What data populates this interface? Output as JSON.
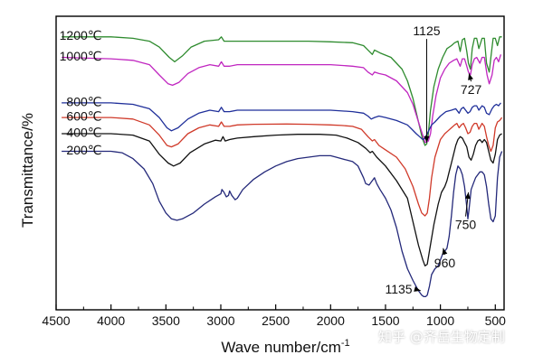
{
  "chart_data": {
    "type": "line",
    "title": "",
    "xlabel": "Wave number/cm",
    "xlabel_sup": "-1",
    "ylabel": "Transmittance/%",
    "xlim": [
      4500,
      420
    ],
    "x_reversed": true,
    "ylim": [
      0,
      1
    ],
    "y_ticks_shown": false,
    "x_ticks": [
      4500,
      4000,
      3500,
      3000,
      2500,
      2000,
      1500,
      1000,
      500
    ],
    "x_tick_labels": [
      "4500",
      "4000",
      "3500",
      "3000",
      "2500",
      "2000",
      "1500",
      "1000",
      "500"
    ],
    "series": [
      {
        "name": "1200℃",
        "color": "#2e8b2e",
        "label_x": 4100,
        "label_offset": 0.005,
        "x": [
          4450,
          4000,
          3800,
          3650,
          3560,
          3470,
          3420,
          3350,
          3270,
          3150,
          3020,
          2995,
          2970,
          2920,
          2850,
          2700,
          2400,
          2200,
          2000,
          1800,
          1700,
          1660,
          1620,
          1600,
          1550,
          1450,
          1350,
          1300,
          1250,
          1200,
          1165,
          1140,
          1125,
          1110,
          1090,
          1060,
          1020,
          980,
          940,
          900,
          870,
          840,
          820,
          800,
          780,
          760,
          745,
          727,
          710,
          690,
          670,
          650,
          620,
          600,
          580,
          555,
          540,
          520,
          500,
          480,
          460,
          440
        ],
        "y": [
          0.93,
          0.93,
          0.925,
          0.915,
          0.895,
          0.86,
          0.845,
          0.865,
          0.895,
          0.915,
          0.92,
          0.93,
          0.915,
          0.915,
          0.915,
          0.915,
          0.915,
          0.915,
          0.913,
          0.91,
          0.9,
          0.885,
          0.87,
          0.885,
          0.875,
          0.86,
          0.82,
          0.78,
          0.72,
          0.64,
          0.585,
          0.56,
          0.565,
          0.6,
          0.68,
          0.76,
          0.82,
          0.86,
          0.89,
          0.9,
          0.91,
          0.915,
          0.88,
          0.92,
          0.925,
          0.88,
          0.84,
          0.82,
          0.89,
          0.925,
          0.925,
          0.89,
          0.925,
          0.925,
          0.84,
          0.81,
          0.86,
          0.925,
          0.925,
          0.9,
          0.93,
          0.93
        ]
      },
      {
        "name": "1000℃",
        "color": "#c026c0",
        "label_x": 4100,
        "label_offset": 0.005,
        "x": [
          4450,
          4000,
          3800,
          3650,
          3560,
          3480,
          3440,
          3380,
          3300,
          3200,
          3100,
          3020,
          2995,
          2970,
          2920,
          2850,
          2700,
          2400,
          2200,
          2000,
          1800,
          1700,
          1660,
          1620,
          1600,
          1560,
          1500,
          1400,
          1300,
          1250,
          1200,
          1165,
          1140,
          1110,
          1090,
          1070,
          1040,
          1000,
          960,
          920,
          880,
          850,
          820,
          800,
          780,
          760,
          745,
          727,
          710,
          690,
          670,
          640,
          620,
          600,
          575,
          555,
          530,
          510,
          490,
          470,
          450
        ],
        "y": [
          0.86,
          0.855,
          0.85,
          0.835,
          0.8,
          0.77,
          0.765,
          0.775,
          0.805,
          0.825,
          0.835,
          0.83,
          0.845,
          0.83,
          0.83,
          0.835,
          0.835,
          0.835,
          0.835,
          0.835,
          0.83,
          0.825,
          0.81,
          0.8,
          0.81,
          0.805,
          0.8,
          0.78,
          0.74,
          0.7,
          0.64,
          0.6,
          0.57,
          0.575,
          0.6,
          0.66,
          0.73,
          0.79,
          0.82,
          0.84,
          0.85,
          0.855,
          0.83,
          0.855,
          0.855,
          0.83,
          0.81,
          0.8,
          0.835,
          0.855,
          0.86,
          0.84,
          0.86,
          0.86,
          0.8,
          0.77,
          0.8,
          0.85,
          0.86,
          0.845,
          0.87
        ]
      },
      {
        "name": "800℃",
        "color": "#1f2f9a",
        "label_x": 4100,
        "label_offset": 0.005,
        "x": [
          4450,
          4000,
          3800,
          3650,
          3560,
          3490,
          3450,
          3390,
          3300,
          3200,
          3100,
          3020,
          2995,
          2970,
          2920,
          2850,
          2700,
          2400,
          2200,
          2000,
          1800,
          1700,
          1660,
          1630,
          1600,
          1560,
          1500,
          1400,
          1300,
          1260,
          1220,
          1190,
          1160,
          1140,
          1120,
          1100,
          1080,
          1050,
          1000,
          950,
          900,
          860,
          830,
          810,
          790,
          770,
          750,
          730,
          710,
          690,
          670,
          650,
          620,
          600,
          580,
          555,
          530,
          510,
          490,
          470,
          450
        ],
        "y": [
          0.705,
          0.705,
          0.7,
          0.685,
          0.655,
          0.62,
          0.61,
          0.62,
          0.65,
          0.67,
          0.68,
          0.675,
          0.69,
          0.675,
          0.675,
          0.68,
          0.68,
          0.68,
          0.68,
          0.68,
          0.675,
          0.67,
          0.66,
          0.65,
          0.655,
          0.66,
          0.655,
          0.645,
          0.63,
          0.615,
          0.6,
          0.59,
          0.58,
          0.585,
          0.6,
          0.615,
          0.63,
          0.64,
          0.66,
          0.675,
          0.68,
          0.685,
          0.67,
          0.685,
          0.69,
          0.68,
          0.67,
          0.675,
          0.69,
          0.695,
          0.695,
          0.68,
          0.695,
          0.69,
          0.67,
          0.665,
          0.685,
          0.695,
          0.7,
          0.695,
          0.705
        ]
      },
      {
        "name": "600℃",
        "color": "#d03a2a",
        "label_x": 4100,
        "label_offset": 0.005,
        "x": [
          4450,
          4000,
          3800,
          3650,
          3560,
          3490,
          3450,
          3390,
          3300,
          3200,
          3100,
          3020,
          2995,
          2970,
          2920,
          2850,
          2700,
          2400,
          2200,
          2000,
          1900,
          1800,
          1720,
          1660,
          1620,
          1600,
          1560,
          1500,
          1400,
          1320,
          1250,
          1200,
          1170,
          1140,
          1120,
          1100,
          1080,
          1050,
          1000,
          960,
          930,
          900,
          870,
          850,
          830,
          810,
          790,
          770,
          750,
          730,
          710,
          690,
          670,
          650,
          620,
          600,
          580,
          560,
          540,
          520,
          500,
          480,
          460,
          440
        ],
        "y": [
          0.655,
          0.655,
          0.65,
          0.63,
          0.595,
          0.56,
          0.555,
          0.565,
          0.6,
          0.62,
          0.63,
          0.625,
          0.64,
          0.625,
          0.625,
          0.63,
          0.632,
          0.633,
          0.632,
          0.63,
          0.628,
          0.625,
          0.615,
          0.59,
          0.575,
          0.58,
          0.56,
          0.545,
          0.52,
          0.48,
          0.42,
          0.36,
          0.33,
          0.32,
          0.33,
          0.38,
          0.45,
          0.52,
          0.58,
          0.6,
          0.61,
          0.62,
          0.63,
          0.635,
          0.62,
          0.63,
          0.635,
          0.62,
          0.6,
          0.605,
          0.625,
          0.635,
          0.635,
          0.615,
          0.635,
          0.625,
          0.59,
          0.56,
          0.54,
          0.56,
          0.62,
          0.64,
          0.645,
          0.655
        ]
      },
      {
        "name": "400℃",
        "color": "#111111",
        "label_x": 4100,
        "label_offset": 0.005,
        "x": [
          4450,
          4000,
          3800,
          3650,
          3560,
          3480,
          3430,
          3370,
          3280,
          3150,
          3050,
          3000,
          2980,
          2960,
          2920,
          2850,
          2700,
          2500,
          2300,
          2100,
          1950,
          1850,
          1750,
          1680,
          1640,
          1620,
          1580,
          1500,
          1400,
          1300,
          1250,
          1200,
          1160,
          1140,
          1120,
          1100,
          1060,
          1020,
          990,
          960,
          940,
          920,
          900,
          880,
          860,
          840,
          820,
          800,
          780,
          760,
          740,
          720,
          700,
          680,
          660,
          640,
          620,
          600,
          580,
          560,
          540,
          520,
          500,
          480,
          460,
          440
        ],
        "y": [
          0.6,
          0.6,
          0.595,
          0.575,
          0.53,
          0.5,
          0.49,
          0.5,
          0.535,
          0.565,
          0.578,
          0.575,
          0.59,
          0.575,
          0.58,
          0.585,
          0.59,
          0.595,
          0.598,
          0.598,
          0.595,
          0.585,
          0.57,
          0.55,
          0.535,
          0.54,
          0.52,
          0.49,
          0.44,
          0.38,
          0.3,
          0.22,
          0.17,
          0.15,
          0.155,
          0.2,
          0.29,
          0.36,
          0.4,
          0.42,
          0.44,
          0.47,
          0.5,
          0.53,
          0.56,
          0.58,
          0.59,
          0.585,
          0.57,
          0.555,
          0.52,
          0.51,
          0.53,
          0.56,
          0.575,
          0.58,
          0.57,
          0.58,
          0.57,
          0.54,
          0.51,
          0.5,
          0.53,
          0.58,
          0.595,
          0.6
        ]
      },
      {
        "name": "200℃",
        "color": "#24297a",
        "label_x": 4100,
        "label_offset": 0.005,
        "x": [
          4450,
          4000,
          3900,
          3800,
          3700,
          3620,
          3560,
          3500,
          3450,
          3400,
          3350,
          3250,
          3150,
          3050,
          3000,
          2990,
          2970,
          2950,
          2930,
          2920,
          2900,
          2870,
          2850,
          2800,
          2700,
          2600,
          2500,
          2400,
          2300,
          2200,
          2100,
          2000,
          1950,
          1850,
          1800,
          1750,
          1700,
          1680,
          1650,
          1620,
          1600,
          1580,
          1550,
          1500,
          1450,
          1400,
          1350,
          1300,
          1250,
          1200,
          1170,
          1150,
          1135,
          1120,
          1100,
          1080,
          1050,
          1020,
          1000,
          980,
          960,
          940,
          920,
          900,
          880,
          860,
          840,
          820,
          800,
          780,
          760,
          750,
          740,
          720,
          700,
          680,
          660,
          640,
          620,
          600,
          580,
          560,
          540,
          520,
          500,
          480,
          460,
          440
        ],
        "y": [
          0.54,
          0.54,
          0.535,
          0.515,
          0.48,
          0.43,
          0.37,
          0.33,
          0.31,
          0.305,
          0.31,
          0.33,
          0.36,
          0.385,
          0.395,
          0.41,
          0.4,
          0.385,
          0.39,
          0.405,
          0.39,
          0.375,
          0.38,
          0.41,
          0.445,
          0.47,
          0.49,
          0.505,
          0.515,
          0.52,
          0.525,
          0.525,
          0.52,
          0.51,
          0.505,
          0.49,
          0.45,
          0.43,
          0.425,
          0.44,
          0.45,
          0.43,
          0.41,
          0.38,
          0.34,
          0.28,
          0.2,
          0.14,
          0.1,
          0.065,
          0.05,
          0.045,
          0.045,
          0.05,
          0.08,
          0.12,
          0.14,
          0.15,
          0.17,
          0.19,
          0.2,
          0.21,
          0.25,
          0.32,
          0.4,
          0.46,
          0.49,
          0.48,
          0.46,
          0.42,
          0.35,
          0.31,
          0.34,
          0.41,
          0.43,
          0.45,
          0.46,
          0.47,
          0.47,
          0.46,
          0.42,
          0.36,
          0.31,
          0.3,
          0.32,
          0.45,
          0.52,
          0.54
        ]
      }
    ],
    "annotations": [
      {
        "text": "1125",
        "x": 1125,
        "y": 0.935,
        "arrow_to": [
          1125,
          0.57
        ]
      },
      {
        "text": "727",
        "x": 720,
        "y": 0.735,
        "arrow_to": [
          740,
          0.805
        ]
      },
      {
        "text": "750",
        "x": 770,
        "y": 0.275,
        "arrow_to": [
          745,
          0.4
        ]
      },
      {
        "text": "960",
        "x": 960,
        "y": 0.145,
        "arrow_to": [
          975,
          0.21
        ]
      },
      {
        "text": "1135",
        "x": 1380,
        "y": 0.055,
        "arrow_to": [
          1180,
          0.065
        ]
      }
    ]
  },
  "watermark": "知乎 @齐岳生物定制"
}
